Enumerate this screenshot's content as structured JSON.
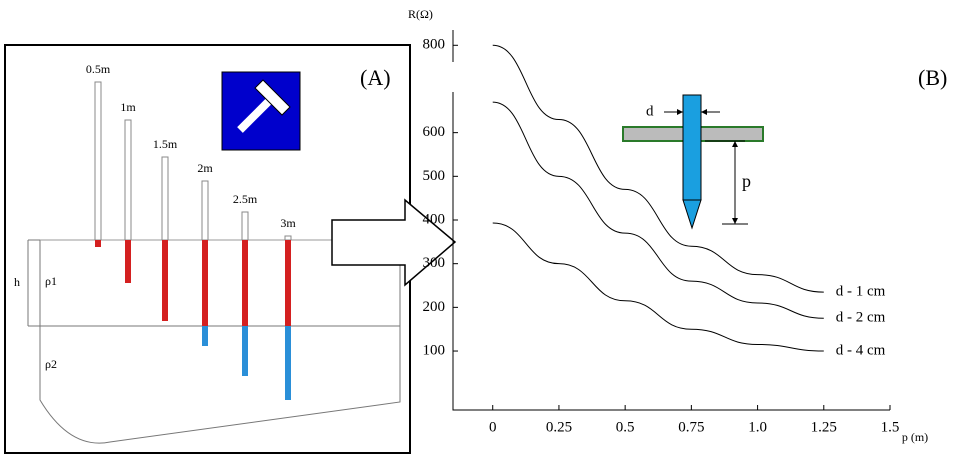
{
  "panels": {
    "left": "(A)",
    "right": "(B)"
  },
  "diagram": {
    "rods": [
      "0.5m",
      "1m",
      "1.5m",
      "2m",
      "2.5m",
      "3m"
    ],
    "h": "h",
    "layer1": "ρ1",
    "layer2": "ρ2"
  },
  "chart_data": {
    "type": "line",
    "y_label": "R(Ω)",
    "x_label": "p (m)",
    "x": [
      0,
      0.25,
      0.5,
      0.75,
      1.0,
      1.25
    ],
    "series": [
      {
        "name": "d - 1 cm",
        "color": "#000000",
        "values": [
          800,
          630,
          470,
          340,
          275,
          235
        ]
      },
      {
        "name": "d - 2 cm",
        "color": "#000000",
        "values": [
          670,
          500,
          370,
          260,
          210,
          175
        ]
      },
      {
        "name": "d - 4 cm",
        "color": "#000000",
        "values": [
          393,
          300,
          215,
          150,
          115,
          100
        ]
      }
    ],
    "xlim": [
      -0.15,
      1.5
    ],
    "ylim": [
      -35,
      835
    ],
    "xticks": [
      0,
      0.25,
      0.5,
      0.75,
      {
        "value": 1.0,
        "label": "1.0"
      },
      1.25,
      1.5
    ],
    "yticks": [
      100,
      200,
      300,
      400,
      500,
      600,
      800
    ],
    "inset": {
      "d": "d",
      "p": "p"
    }
  }
}
